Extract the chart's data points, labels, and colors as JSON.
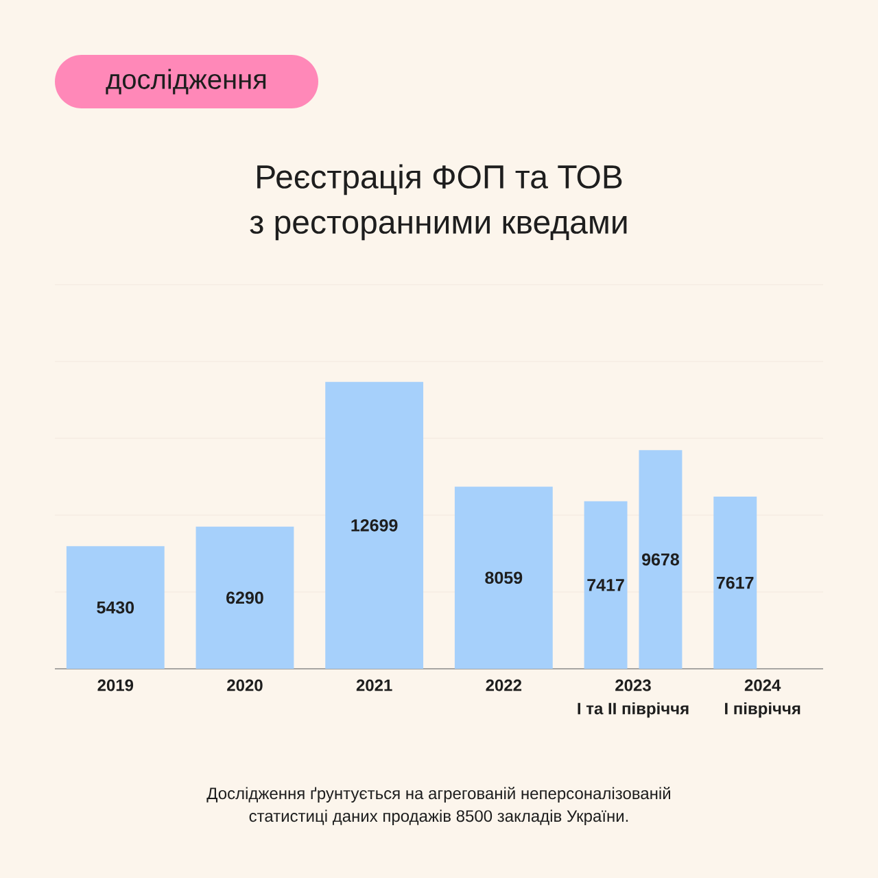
{
  "chart_data": {
    "type": "bar",
    "title": "Реєстрація ФОП та ТОВ\nз ресторанними кведами",
    "categories": [
      "2019",
      "2020",
      "2021",
      "2022",
      "2023\nI та II півріччя",
      "2024\nI півріччя"
    ],
    "series": [
      {
        "color": "#a6d0fb",
        "values": [
          5430,
          6290,
          12699,
          8059,
          null,
          null
        ]
      },
      {
        "color": "#a6d0fb",
        "values": [
          null,
          null,
          null,
          null,
          7417,
          7617
        ]
      },
      {
        "color": "#a6d0fb",
        "values": [
          null,
          null,
          null,
          null,
          9678,
          null
        ]
      }
    ],
    "ylim": [
      0,
      17000
    ],
    "yticks": [
      {
        "value": 3400,
        "label": null
      },
      {
        "value": 6800,
        "label": null
      },
      {
        "value": 10200,
        "label": null
      },
      {
        "value": 13600,
        "label": null
      },
      {
        "value": 17000,
        "label": null
      }
    ],
    "grid": "y",
    "tick_labels": "x",
    "data_labels": true,
    "annotations": [
      "дослідження",
      "Дослідження ґрунтується на агрегованій неперсоналізованій\nстатистиці даних продажів 8500 закладів України."
    ]
  }
}
